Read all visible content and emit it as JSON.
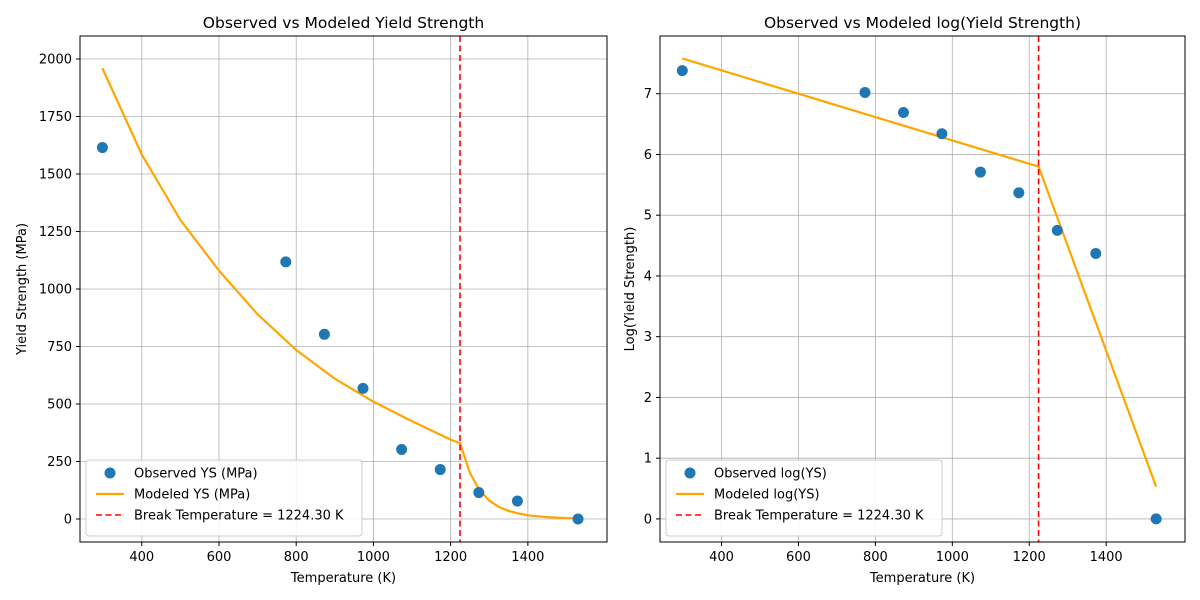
{
  "chart_data": [
    {
      "type": "line",
      "title": "Observed vs Modeled Yield Strength",
      "xlabel": "Temperature (K)",
      "ylabel": "Yield Strength (MPa)",
      "xlim": [
        240,
        1605
      ],
      "ylim": [
        -100,
        2100
      ],
      "xticks": [
        400,
        600,
        800,
        1000,
        1200,
        1400
      ],
      "yticks": [
        0,
        250,
        500,
        750,
        1000,
        1250,
        1500,
        1750,
        2000
      ],
      "grid": true,
      "legend_position": "lower-left",
      "break_temperature": 1224.3,
      "observed": {
        "name": "Observed YS (MPa)",
        "color": "#1f77b4",
        "x": [
          298,
          773,
          873,
          973,
          1073,
          1173,
          1273,
          1373,
          1530
        ],
        "y": [
          1615,
          1118,
          803,
          568,
          302,
          215,
          115,
          78,
          0
        ]
      },
      "modeled": {
        "name": "Modeled YS (MPa)",
        "color": "#ffa500",
        "x": [
          298,
          400,
          500,
          600,
          700,
          800,
          900,
          1000,
          1100,
          1200,
          1224.3,
          1250,
          1275,
          1300,
          1325,
          1350,
          1375,
          1400,
          1450,
          1500,
          1530
        ],
        "y": [
          1960,
          1585,
          1300,
          1080,
          890,
          735,
          610,
          510,
          425,
          345,
          330,
          200,
          125,
          80,
          52,
          35,
          24,
          16,
          8,
          4,
          2
        ]
      },
      "vline": {
        "name": "Break Temperature = 1224.30 K",
        "color": "#ff0000"
      }
    },
    {
      "type": "line",
      "title": "Observed vs Modeled log(Yield Strength)",
      "xlabel": "Temperature (K)",
      "ylabel": "Log(Yield Strength)",
      "xlim": [
        240,
        1605
      ],
      "ylim": [
        -0.38,
        7.95
      ],
      "xticks": [
        400,
        600,
        800,
        1000,
        1200,
        1400
      ],
      "yticks": [
        0,
        1,
        2,
        3,
        4,
        5,
        6,
        7
      ],
      "grid": true,
      "legend_position": "lower-left",
      "break_temperature": 1224.3,
      "observed": {
        "name": "Observed log(YS)",
        "color": "#1f77b4",
        "x": [
          298,
          773,
          873,
          973,
          1073,
          1173,
          1273,
          1373,
          1530
        ],
        "y": [
          7.38,
          7.02,
          6.69,
          6.34,
          5.71,
          5.37,
          4.75,
          4.37,
          0
        ]
      },
      "modeled": {
        "name": "Modeled log(YS)",
        "color": "#ffa500",
        "x": [
          298,
          1224.3,
          1530
        ],
        "y": [
          7.58,
          5.8,
          0.53
        ]
      },
      "vline": {
        "name": "Break Temperature = 1224.30 K",
        "color": "#ff0000"
      }
    }
  ]
}
